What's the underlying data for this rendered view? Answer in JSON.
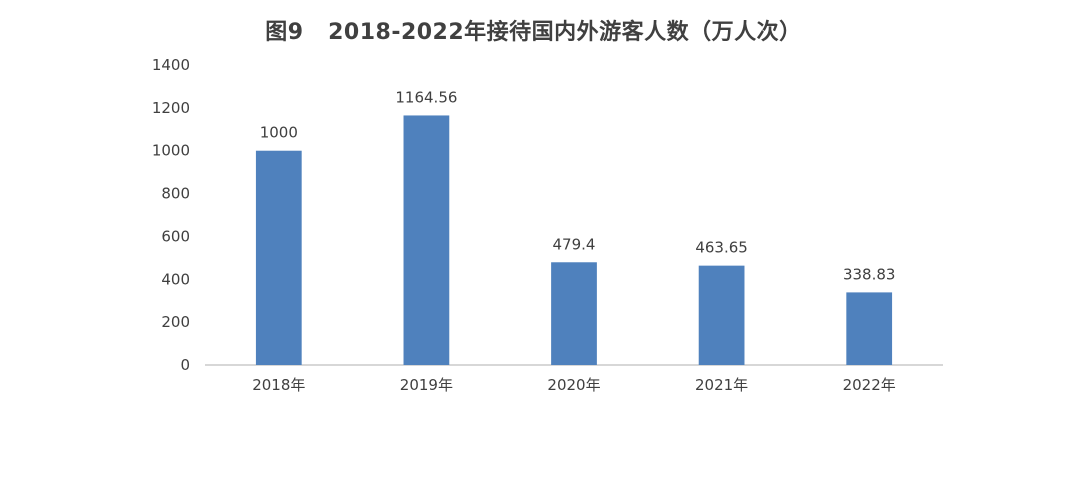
{
  "chart_data": {
    "type": "bar",
    "title": "图9   2018-2022年接待国内外游客人数（万人次）",
    "categories": [
      "2018年",
      "2019年",
      "2020年",
      "2021年",
      "2022年"
    ],
    "values": [
      1000,
      1164.56,
      479.4,
      463.65,
      338.83
    ],
    "data_labels": [
      "1000",
      "1164.56",
      "479.4",
      "463.65",
      "338.83"
    ],
    "y_ticks": [
      "0",
      "200",
      "400",
      "600",
      "800",
      "1000",
      "1200",
      "1400"
    ],
    "ylim": [
      0,
      1400
    ],
    "xlabel": "",
    "ylabel": "",
    "grid": false,
    "legend": "none",
    "bar_color": "#4f81bd",
    "axis_color": "#bfbfbf",
    "text_color": "#404040"
  }
}
